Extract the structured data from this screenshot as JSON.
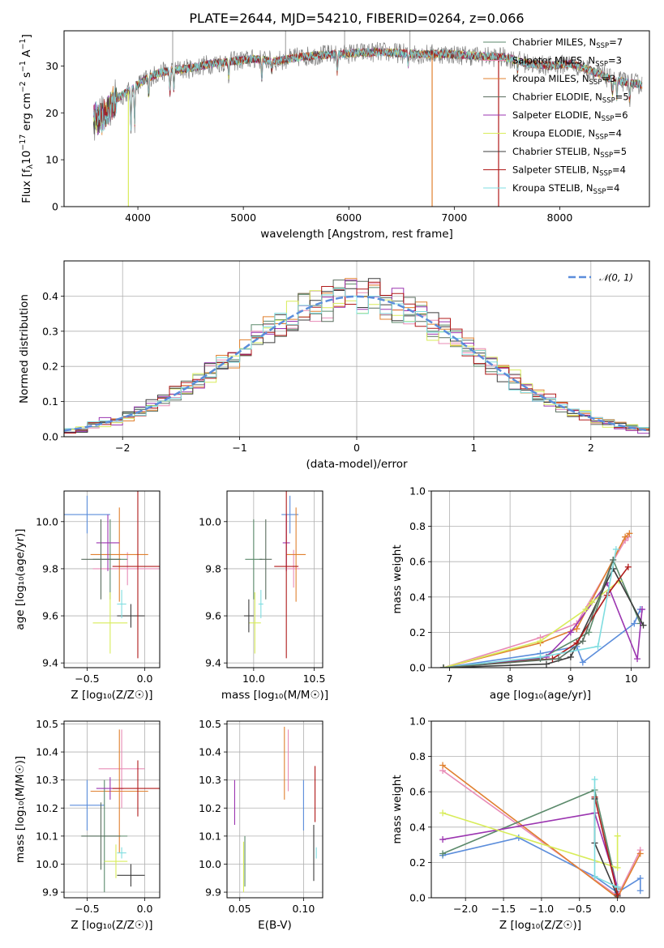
{
  "figure": {
    "title": "PLATE=2644, MJD=54210, FIBERID=0264, z=0.066",
    "colors": {
      "chabrier_miles": "#5b8a6b",
      "salpeter_miles": "#e88bb6",
      "kroupa_miles": "#e0802f",
      "chabrier_elodie": "#5a6e5f",
      "salpeter_elodie": "#9b35b0",
      "kroupa_elodie": "#d8ec5a",
      "chabrier_stelib": "#3d3d3d",
      "salpeter_stelib": "#b01a1a",
      "kroupa_stelib": "#7fdde0",
      "mean_gray": "#808080",
      "normal_curve": "#5b8ddb",
      "grid": "#b0b0b0"
    }
  },
  "chart_data": [
    {
      "id": "spectrum",
      "type": "line",
      "xlabel": "wavelength [Angstrom, rest frame]",
      "ylabel": "Flux [f_λ 10^-17 erg cm^-2 s^-1 A^-1]",
      "xlim": [
        3300,
        8850
      ],
      "ylim": [
        0,
        37.5
      ],
      "xticks": [
        4000,
        5000,
        6000,
        7000,
        8000
      ],
      "yticks": [
        0,
        10,
        20,
        30
      ],
      "grid": false,
      "legend_position": "top-right",
      "legend": [
        {
          "name": "Chabrier MILES, N",
          "sub": "SSP",
          "eq": "=7",
          "color": "chabrier_miles"
        },
        {
          "name": "Salpeter MILES, N",
          "sub": "SSP",
          "eq": "=3",
          "color": "salpeter_miles"
        },
        {
          "name": "Kroupa MILES, N",
          "sub": "SSP",
          "eq": "=3",
          "color": "kroupa_miles"
        },
        {
          "name": "Chabrier ELODIE, N",
          "sub": "SSP",
          "eq": "=5",
          "color": "chabrier_elodie"
        },
        {
          "name": "Salpeter ELODIE, N",
          "sub": "SSP",
          "eq": "=6",
          "color": "salpeter_elodie"
        },
        {
          "name": "Kroupa ELODIE, N",
          "sub": "SSP",
          "eq": "=4",
          "color": "kroupa_elodie"
        },
        {
          "name": "Chabrier STELIB, N",
          "sub": "SSP",
          "eq": "=5",
          "color": "chabrier_stelib"
        },
        {
          "name": "Salpeter STELIB, N",
          "sub": "SSP",
          "eq": "=4",
          "color": "salpeter_stelib"
        },
        {
          "name": "Kroupa STELIB, N",
          "sub": "SSP",
          "eq": "=4",
          "color": "kroupa_stelib"
        }
      ],
      "continuum_x": [
        3580,
        3650,
        3700,
        3800,
        3900,
        4000,
        4100,
        4200,
        4300,
        4500,
        4700,
        4900,
        5100,
        5300,
        5500,
        5700,
        5900,
        6100,
        6300,
        6500,
        6700,
        6900,
        7100,
        7300,
        7500,
        7700,
        7900,
        8100,
        8300,
        8500,
        8780
      ],
      "continuum_y": [
        19,
        18.5,
        20,
        23,
        24.5,
        26,
        27.5,
        28.5,
        29,
        29.5,
        30.5,
        31,
        31.5,
        31,
        31.8,
        32.3,
        32.5,
        32.8,
        33,
        32.7,
        32.5,
        32.6,
        32.3,
        32,
        31.8,
        30.5,
        30,
        30.5,
        29,
        27,
        26
      ],
      "absorption_lines": [
        {
          "x": 3934,
          "depth": 9
        },
        {
          "x": 3969,
          "depth": 8
        },
        {
          "x": 4102,
          "depth": 4
        },
        {
          "x": 4304,
          "depth": 5
        },
        {
          "x": 4341,
          "depth": 4
        },
        {
          "x": 4861,
          "depth": 3
        },
        {
          "x": 5175,
          "depth": 4
        },
        {
          "x": 5270,
          "depth": 2
        },
        {
          "x": 5890,
          "depth": 4
        },
        {
          "x": 6563,
          "depth": 2.5
        },
        {
          "x": 7600,
          "depth": 2
        },
        {
          "x": 8500,
          "depth": 3
        },
        {
          "x": 8542,
          "depth": 4
        },
        {
          "x": 8662,
          "depth": 4
        }
      ],
      "glitches": [
        {
          "x": 3910,
          "y": 0,
          "color": "kroupa_elodie"
        },
        {
          "x": 6790,
          "y": 0,
          "color": "kroupa_miles"
        },
        {
          "x": 7420,
          "y": 0,
          "color": "salpeter_stelib"
        }
      ],
      "spikes": [
        {
          "x": 4330,
          "y": 37.5
        },
        {
          "x": 5400,
          "y": 37.5
        },
        {
          "x": 5960,
          "y": 37.5
        },
        {
          "x": 6580,
          "y": 37.5
        }
      ]
    },
    {
      "id": "residuals",
      "type": "line",
      "xlabel": "(data-model)/error",
      "ylabel": "Normed distribution",
      "xlim": [
        -2.5,
        2.5
      ],
      "ylim": [
        0,
        0.5
      ],
      "xticks": [
        -2,
        -1,
        0,
        1,
        2
      ],
      "yticks": [
        0.0,
        0.1,
        0.2,
        0.3,
        0.4
      ],
      "grid": true,
      "legend_position": "top-right",
      "curve_label": "𝒩(0, 1)",
      "bin_width": 0.1
    },
    {
      "id": "age_vs_Z",
      "type": "scatter",
      "xlabel": "Z [log₁₀(Z/Z☉)]",
      "ylabel": "age  [log₁₀(age/yr)]",
      "xlim": [
        -0.7,
        0.13
      ],
      "ylim": [
        9.38,
        10.13
      ],
      "xticks": [
        -0.5,
        0.0
      ],
      "yticks": [
        9.4,
        9.6,
        9.8,
        10.0
      ],
      "grid": true,
      "points": [
        {
          "color": "normal_curve",
          "x": -0.5,
          "xerr": 0.2,
          "y": 10.03,
          "yerr": 0.08
        },
        {
          "color": "salpeter_miles",
          "x": -0.15,
          "xerr": 0.3,
          "y": 9.8,
          "yerr": 0.07
        },
        {
          "color": "kroupa_miles",
          "x": -0.22,
          "xerr": 0.25,
          "y": 9.86,
          "yerr": 0.2
        },
        {
          "color": "chabrier_miles",
          "x": -0.3,
          "xerr": 0.15,
          "y": 9.84,
          "yerr": 0.17
        },
        {
          "color": "salpeter_elodie",
          "x": -0.32,
          "xerr": 0.1,
          "y": 9.91,
          "yerr": 0.12
        },
        {
          "color": "kroupa_elodie",
          "x": -0.3,
          "xerr": 0.15,
          "y": 9.57,
          "yerr": 0.13
        },
        {
          "color": "chabrier_stelib",
          "x": -0.12,
          "xerr": 0.12,
          "y": 9.6,
          "yerr": 0.05
        },
        {
          "color": "salpeter_stelib",
          "x": -0.06,
          "xerr": 0.22,
          "y": 9.81,
          "yerr": 0.39
        },
        {
          "color": "kroupa_stelib",
          "x": -0.2,
          "xerr": 0.04,
          "y": 9.65,
          "yerr": 0.06
        },
        {
          "color": "chabrier_elodie",
          "x": -0.38,
          "xerr": 0.17,
          "y": 9.84,
          "yerr": 0.17
        }
      ]
    },
    {
      "id": "age_vs_mass",
      "type": "scatter",
      "xlabel": "mass [log₁₀(M/M☉)]",
      "ylabel": "",
      "xlim": [
        9.78,
        10.57
      ],
      "ylim": [
        9.38,
        10.13
      ],
      "xticks": [
        10.0,
        10.5
      ],
      "yticks": [
        9.4,
        9.6,
        9.8,
        10.0
      ],
      "grid": true,
      "points": [
        {
          "color": "normal_curve",
          "x": 10.3,
          "xerr": 0.07,
          "y": 10.03,
          "yerr": 0.08
        },
        {
          "color": "salpeter_miles",
          "x": 10.33,
          "xerr": 0.05,
          "y": 9.8,
          "yerr": 0.08
        },
        {
          "color": "kroupa_miles",
          "x": 10.35,
          "xerr": 0.08,
          "y": 9.86,
          "yerr": 0.2
        },
        {
          "color": "chabrier_miles",
          "x": 10.0,
          "xerr": 0.07,
          "y": 9.84,
          "yerr": 0.17
        },
        {
          "color": "salpeter_elodie",
          "x": 10.27,
          "xerr": 0.03,
          "y": 9.91,
          "yerr": 0.12
        },
        {
          "color": "kroupa_elodie",
          "x": 10.01,
          "xerr": 0.05,
          "y": 9.57,
          "yerr": 0.13
        },
        {
          "color": "chabrier_stelib",
          "x": 9.96,
          "xerr": 0.04,
          "y": 9.6,
          "yerr": 0.07
        },
        {
          "color": "salpeter_stelib",
          "x": 10.27,
          "xerr": 0.1,
          "y": 9.81,
          "yerr": 0.39
        },
        {
          "color": "kroupa_stelib",
          "x": 10.06,
          "xerr": 0.02,
          "y": 9.65,
          "yerr": 0.06
        },
        {
          "color": "chabrier_elodie",
          "x": 10.1,
          "xerr": 0.05,
          "y": 9.84,
          "yerr": 0.17
        }
      ]
    },
    {
      "id": "weight_vs_age",
      "type": "line",
      "xlabel": "age  [log₁₀(age/yr)]",
      "ylabel": "mass weight",
      "xlim": [
        6.7,
        10.3
      ],
      "ylim": [
        0,
        1
      ],
      "xticks": [
        7,
        8,
        9,
        10
      ],
      "yticks": [
        0.0,
        0.2,
        0.4,
        0.6,
        0.8,
        1.0
      ],
      "grid": true,
      "series": [
        {
          "color": "normal_curve",
          "x": [
            6.9,
            8.5,
            9.1,
            9.2,
            10.05,
            10.15
          ],
          "y": [
            0.0,
            0.08,
            0.12,
            0.03,
            0.25,
            0.33
          ]
        },
        {
          "color": "salpeter_miles",
          "x": [
            6.9,
            8.5,
            9.1,
            9.9,
            9.95
          ],
          "y": [
            0.0,
            0.17,
            0.25,
            0.72,
            0.74
          ]
        },
        {
          "color": "kroupa_miles",
          "x": [
            6.9,
            8.5,
            9.1,
            9.9,
            9.97
          ],
          "y": [
            0.0,
            0.14,
            0.22,
            0.74,
            0.76
          ]
        },
        {
          "color": "chabrier_miles",
          "x": [
            6.9,
            8.5,
            9.3,
            9.7,
            10.15
          ],
          "y": [
            0.0,
            0.05,
            0.2,
            0.61,
            0.25
          ]
        },
        {
          "color": "salpeter_elodie",
          "x": [
            6.9,
            8.6,
            9.0,
            9.6,
            10.1,
            10.18
          ],
          "y": [
            0.0,
            0.06,
            0.2,
            0.48,
            0.05,
            0.33
          ]
        },
        {
          "color": "kroupa_elodie",
          "x": [
            6.9,
            8.5,
            9.25,
            9.35,
            9.8
          ],
          "y": [
            0.0,
            0.15,
            0.33,
            0.37,
            0.49
          ]
        },
        {
          "color": "chabrier_stelib",
          "x": [
            6.9,
            8.6,
            9.0,
            9.7,
            10.2
          ],
          "y": [
            0.0,
            0.02,
            0.06,
            0.56,
            0.24
          ]
        },
        {
          "color": "salpeter_stelib",
          "x": [
            6.9,
            8.7,
            9.1,
            9.6,
            9.95
          ],
          "y": [
            0.0,
            0.05,
            0.14,
            0.41,
            0.57
          ]
        },
        {
          "color": "kroupa_stelib",
          "x": [
            6.9,
            8.5,
            9.45,
            9.75
          ],
          "y": [
            0.0,
            0.06,
            0.12,
            0.67
          ]
        },
        {
          "color": "chabrier_elodie",
          "x": [
            6.9,
            8.8,
            9.2,
            9.7
          ],
          "y": [
            0.0,
            0.05,
            0.15,
            0.61
          ]
        }
      ]
    },
    {
      "id": "mass_vs_Z",
      "type": "scatter",
      "xlabel": "Z [log₁₀(Z/Z☉)]",
      "ylabel": "mass [log₁₀(M/M☉)]",
      "xlim": [
        -0.7,
        0.13
      ],
      "ylim": [
        9.88,
        10.51
      ],
      "xticks": [
        -0.5,
        0.0
      ],
      "yticks": [
        9.9,
        10.0,
        10.1,
        10.2,
        10.3,
        10.4,
        10.5
      ],
      "grid": true,
      "points": [
        {
          "color": "normal_curve",
          "x": -0.5,
          "xerr": 0.15,
          "y": 10.21,
          "yerr": 0.09
        },
        {
          "color": "salpeter_miles",
          "x": -0.2,
          "xerr": 0.2,
          "y": 10.34,
          "yerr": 0.14
        },
        {
          "color": "kroupa_miles",
          "x": -0.22,
          "xerr": 0.25,
          "y": 10.26,
          "yerr": 0.22
        },
        {
          "color": "chabrier_miles",
          "x": -0.35,
          "xerr": 0.2,
          "y": 10.1,
          "yerr": 0.2
        },
        {
          "color": "salpeter_elodie",
          "x": -0.3,
          "xerr": 0.12,
          "y": 10.27,
          "yerr": 0.04
        },
        {
          "color": "kroupa_elodie",
          "x": -0.25,
          "xerr": 0.1,
          "y": 10.01,
          "yerr": 0.06
        },
        {
          "color": "chabrier_stelib",
          "x": -0.12,
          "xerr": 0.12,
          "y": 9.96,
          "yerr": 0.04
        },
        {
          "color": "salpeter_stelib",
          "x": -0.06,
          "xerr": 0.22,
          "y": 10.27,
          "yerr": 0.1
        },
        {
          "color": "kroupa_stelib",
          "x": -0.2,
          "xerr": 0.04,
          "y": 10.04,
          "yerr": 0.02
        },
        {
          "color": "chabrier_elodie",
          "x": -0.38,
          "xerr": 0.17,
          "y": 10.1,
          "yerr": 0.12
        }
      ]
    },
    {
      "id": "mass_vs_ebv",
      "type": "scatter",
      "xlabel": "E(B-V)",
      "ylabel": "",
      "xlim": [
        0.04,
        0.115
      ],
      "ylim": [
        9.88,
        10.51
      ],
      "xticks": [
        0.05,
        0.1
      ],
      "yticks": [
        9.9,
        10.0,
        10.1,
        10.2,
        10.3,
        10.4,
        10.5
      ],
      "grid": true,
      "points": [
        {
          "color": "normal_curve",
          "x": 0.1,
          "y": 10.21,
          "yerr": 0.09
        },
        {
          "color": "salpeter_miles",
          "x": 0.088,
          "y": 10.37,
          "yerr": 0.11
        },
        {
          "color": "kroupa_miles",
          "x": 0.085,
          "y": 10.36,
          "yerr": 0.13
        },
        {
          "color": "chabrier_miles",
          "x": 0.054,
          "y": 10.01,
          "yerr": 0.09
        },
        {
          "color": "salpeter_elodie",
          "x": 0.046,
          "y": 10.22,
          "yerr": 0.08
        },
        {
          "color": "kroupa_elodie",
          "x": 0.053,
          "y": 9.99,
          "yerr": 0.09
        },
        {
          "color": "chabrier_stelib",
          "x": 0.108,
          "y": 10.04,
          "yerr": 0.1
        },
        {
          "color": "salpeter_stelib",
          "x": 0.109,
          "y": 10.25,
          "yerr": 0.1
        },
        {
          "color": "kroupa_stelib",
          "x": 0.11,
          "y": 10.04,
          "yerr": 0.02
        }
      ]
    },
    {
      "id": "weight_vs_Z",
      "type": "line",
      "xlabel": "Z [log₁₀(Z/Z☉)]",
      "ylabel": "mass weight",
      "xlim": [
        -2.45,
        0.42
      ],
      "ylim": [
        0,
        1
      ],
      "xticks": [
        -2.0,
        -1.5,
        -1.0,
        -0.5,
        0.0
      ],
      "yticks": [
        0.0,
        0.2,
        0.4,
        0.6,
        0.8,
        1.0
      ],
      "grid": true,
      "series": [
        {
          "color": "normal_curve",
          "x": [
            -2.3,
            -1.3,
            -0.3,
            0.0,
            0.3,
            0.3
          ],
          "y": [
            0.24,
            0.34,
            0.12,
            0.03,
            0.11,
            0.04
          ]
        },
        {
          "color": "salpeter_miles",
          "x": [
            -2.3,
            0.0,
            0.3
          ],
          "y": [
            0.72,
            0.01,
            0.27
          ]
        },
        {
          "color": "kroupa_miles",
          "x": [
            -2.3,
            0.0,
            0.3
          ],
          "y": [
            0.75,
            0.0,
            0.25
          ]
        },
        {
          "color": "chabrier_miles",
          "x": [
            -2.3,
            -0.3,
            0.0
          ],
          "y": [
            0.25,
            0.61,
            0.05
          ]
        },
        {
          "color": "salpeter_elodie",
          "x": [
            -2.3,
            -0.3,
            0.0
          ],
          "y": [
            0.33,
            0.48,
            0.06
          ]
        },
        {
          "color": "kroupa_elodie",
          "x": [
            -2.3,
            0.0,
            0.0
          ],
          "y": [
            0.48,
            0.17,
            0.35
          ]
        },
        {
          "color": "chabrier_stelib",
          "x": [
            -0.3,
            -0.3,
            0.0
          ],
          "y": [
            0.56,
            0.31,
            0.01
          ]
        },
        {
          "color": "salpeter_stelib",
          "x": [
            -0.3,
            0.0
          ],
          "y": [
            0.57,
            0.02
          ]
        },
        {
          "color": "kroupa_stelib",
          "x": [
            -0.3,
            -0.3,
            0.0
          ],
          "y": [
            0.67,
            0.12,
            0.06
          ]
        }
      ]
    }
  ]
}
